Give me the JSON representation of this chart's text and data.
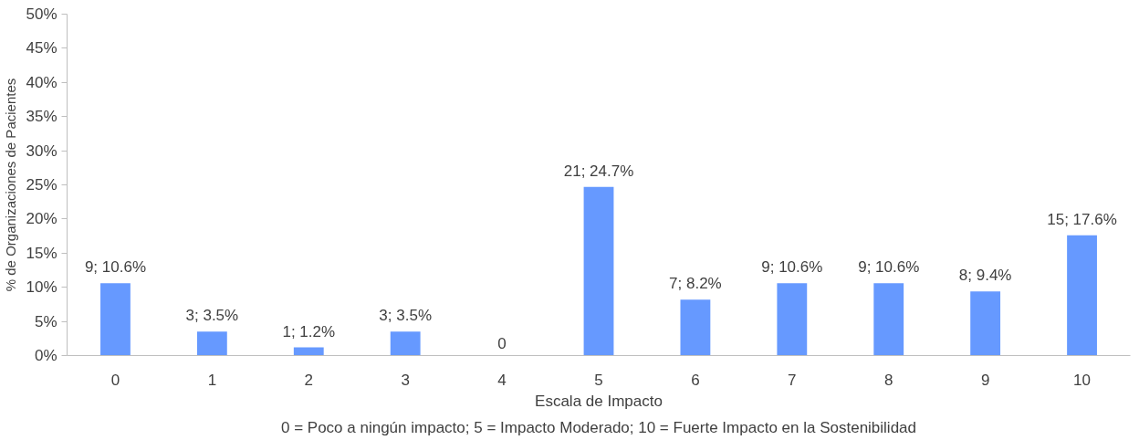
{
  "chart_data": {
    "type": "bar",
    "xlabel": "Escala de Impacto",
    "ylabel": "% de Organizaciones de Pacientes",
    "categories": [
      "0",
      "1",
      "2",
      "3",
      "4",
      "5",
      "6",
      "7",
      "8",
      "9",
      "10"
    ],
    "values": [
      10.6,
      3.5,
      1.2,
      3.5,
      0,
      24.7,
      8.2,
      10.6,
      10.6,
      9.4,
      17.6
    ],
    "value_labels": [
      "9; 10.6%",
      "3; 3.5%",
      "1; 1.2%",
      "3; 3.5%",
      "0",
      "21; 24.7%",
      "7; 8.2%",
      "9; 10.6%",
      "9; 10.6%",
      "8; 9.4%",
      "15; 17.6%"
    ],
    "color": "#6699ff",
    "ylim": [
      0,
      50
    ],
    "yticks": [
      {
        "value": 0,
        "label": "0%"
      },
      {
        "value": 5,
        "label": "5%"
      },
      {
        "value": 10,
        "label": "10%"
      },
      {
        "value": 15,
        "label": "15%"
      },
      {
        "value": 20,
        "label": "20%"
      },
      {
        "value": 25,
        "label": "25%"
      },
      {
        "value": 30,
        "label": "30%"
      },
      {
        "value": 35,
        "label": "35%"
      },
      {
        "value": 40,
        "label": "40%"
      },
      {
        "value": 45,
        "label": "45%"
      },
      {
        "value": 50,
        "label": "50%"
      }
    ],
    "grid": false,
    "annotations": [
      "0 = Poco a ningún impacto; 5 = Impacto Moderado; 10 = Fuerte Impacto en la Sostenibilidad"
    ]
  }
}
